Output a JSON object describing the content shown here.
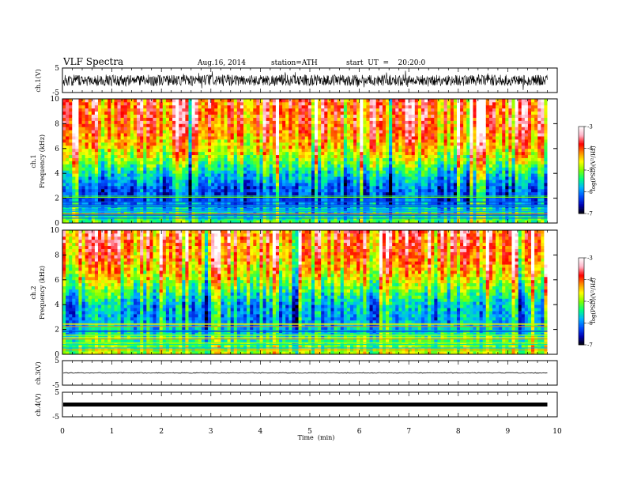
{
  "header": {
    "title": "VLF Spectra",
    "date": "Aug.16, 2014",
    "station": "station=ATH",
    "start": "start  UT  =    20:20:0"
  },
  "chart_data": [
    {
      "type": "line",
      "id": "ch1_waveform",
      "ylabel": "ch.1(V)",
      "ylim": [
        -5,
        5
      ],
      "yticks": [
        "5",
        "-5"
      ],
      "description_level": "broadband noise, amplitude roughly ±2.5 V about 0",
      "x": {
        "range": [
          0,
          10
        ],
        "unit": "min"
      }
    },
    {
      "type": "heatmap",
      "id": "ch1_spectrogram",
      "ylabel_top": "ch.1",
      "ylabel": "Frequency  (kHz)",
      "ylim": [
        0,
        10
      ],
      "yticks": [
        "0",
        "2",
        "4",
        "6",
        "8",
        "10"
      ],
      "x": {
        "range": [
          0,
          10
        ],
        "data_end": 9.8
      },
      "colorbar": {
        "label": "log(PSD)(V²/Hz)",
        "range": [
          -7,
          -3
        ],
        "ticks": [
          "-3",
          "-4",
          "-5",
          "-6",
          "-7"
        ]
      },
      "band_levels_kHz_logpsd": [
        [
          0,
          -5.2
        ],
        [
          1,
          -5.6
        ],
        [
          2,
          -6.3
        ],
        [
          3,
          -6.1
        ],
        [
          4,
          -5.6
        ],
        [
          5,
          -5.0
        ],
        [
          6,
          -4.5
        ],
        [
          7,
          -4.2
        ],
        [
          8,
          -4.0
        ],
        [
          10,
          -3.9
        ]
      ]
    },
    {
      "type": "heatmap",
      "id": "ch2_spectrogram",
      "ylabel_top": "ch.2",
      "ylabel": "Frequency  (kHz)",
      "ylim": [
        0,
        10
      ],
      "yticks": [
        "0",
        "2",
        "4",
        "6",
        "8",
        "10"
      ],
      "x": {
        "range": [
          0,
          10
        ],
        "data_end": 9.8
      },
      "colorbar": {
        "label": "log(PSD)(V²/Hz)",
        "range": [
          -7,
          -3
        ],
        "ticks": [
          "-3",
          "-4",
          "-5",
          "-6",
          "-7"
        ]
      },
      "band_levels_kHz_logpsd": [
        [
          0,
          -4.8
        ],
        [
          1,
          -5.2
        ],
        [
          2,
          -5.7
        ],
        [
          3,
          -5.9
        ],
        [
          4,
          -5.8
        ],
        [
          5,
          -5.3
        ],
        [
          6,
          -4.8
        ],
        [
          7,
          -4.4
        ],
        [
          8,
          -4.1
        ],
        [
          10,
          -3.9
        ]
      ]
    },
    {
      "type": "line",
      "id": "ch3_waveform",
      "ylabel": "ch.3(V)",
      "ylim": [
        -5,
        5
      ],
      "yticks": [
        "5",
        "-5"
      ],
      "level": 0
    },
    {
      "type": "line",
      "id": "ch4_waveform",
      "ylabel": "ch.4(V)",
      "ylim": [
        -5,
        5
      ],
      "yticks": [
        "5",
        "-5"
      ],
      "level": 0
    }
  ],
  "xaxis": {
    "label": "Time  (min)",
    "ticks": [
      "0",
      "1",
      "2",
      "3",
      "4",
      "5",
      "6",
      "7",
      "8",
      "9",
      "10"
    ]
  },
  "colors": {
    "colormap": [
      "#000000",
      "#0000b4",
      "#0050ff",
      "#00b4ff",
      "#00ff80",
      "#80ff00",
      "#ffff00",
      "#ff8c00",
      "#ff0000",
      "#ffb4c8",
      "#ffffff"
    ]
  }
}
